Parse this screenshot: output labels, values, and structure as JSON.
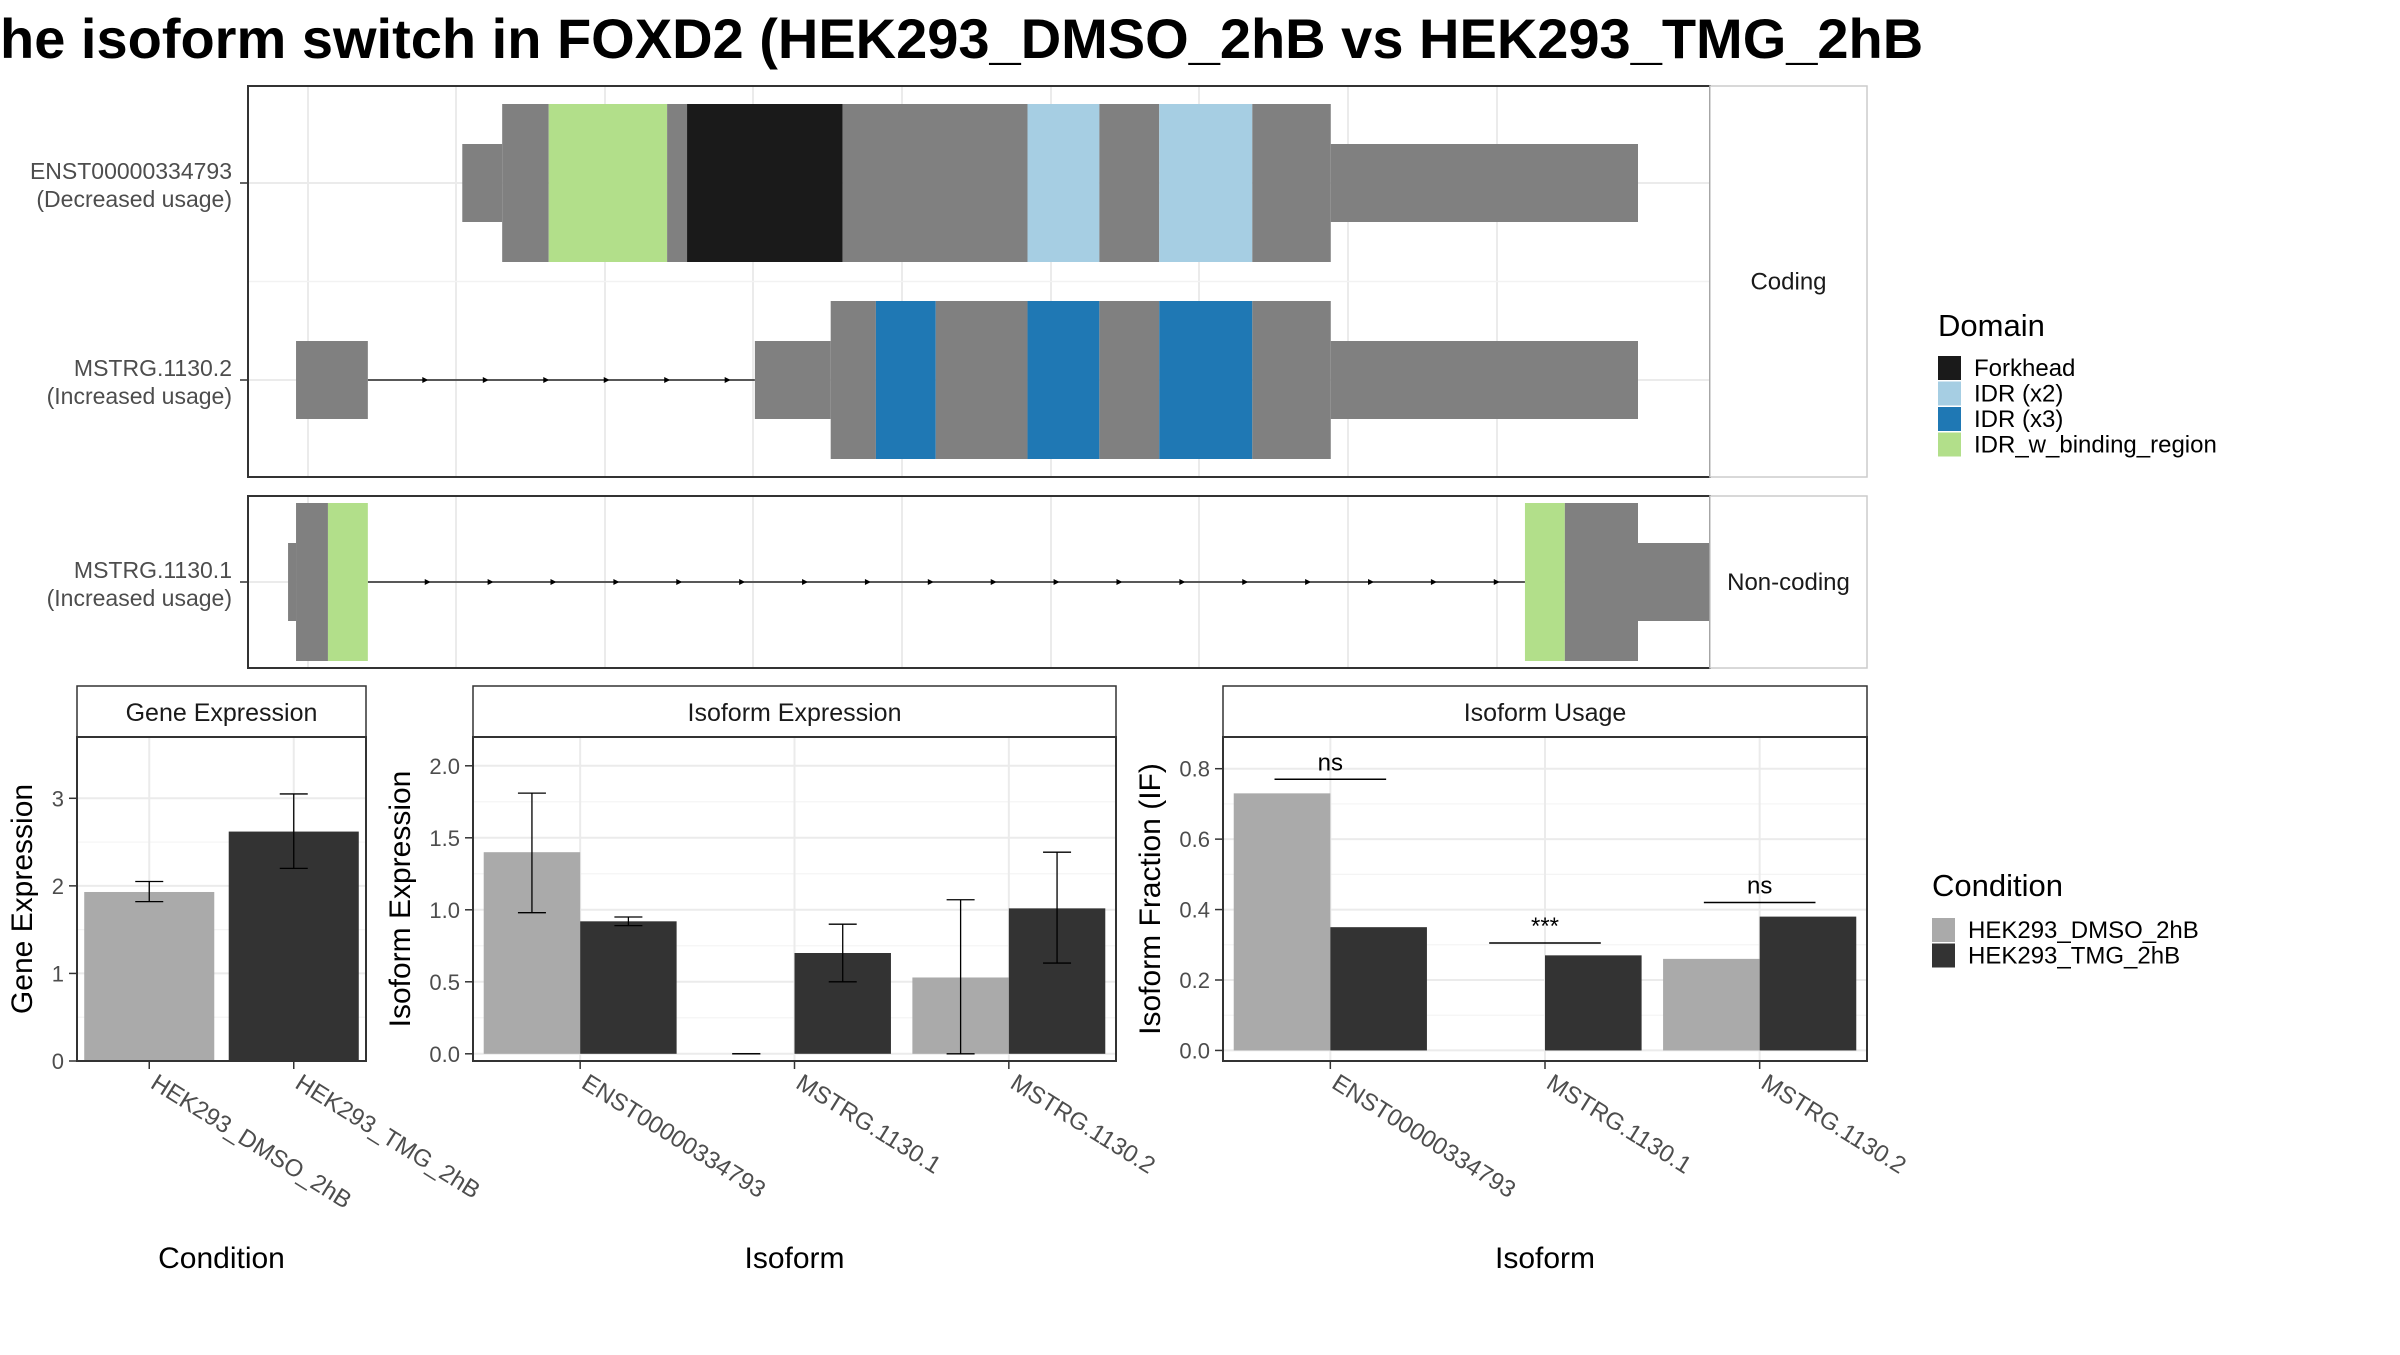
{
  "title": "he isoform switch in FOXD2 (HEK293_DMSO_2hB vs HEK293_TMG_2hB",
  "structure": {
    "panels": [
      {
        "strip": "Coding",
        "transcripts": [
          {
            "name": "ENST00000334793",
            "usage": "(Decreased usage)",
            "segments": [
              {
                "start": 0.116,
                "end": 0.146,
                "kind": "utr"
              },
              {
                "start": 0.146,
                "end": 0.181,
                "kind": "cds"
              },
              {
                "start": 0.181,
                "end": 0.27,
                "kind": "cds",
                "domain": "IDR_w_binding_region"
              },
              {
                "start": 0.27,
                "end": 0.285,
                "kind": "cds"
              },
              {
                "start": 0.285,
                "end": 0.402,
                "kind": "cds",
                "domain": "Forkhead"
              },
              {
                "start": 0.402,
                "end": 0.541,
                "kind": "cds"
              },
              {
                "start": 0.541,
                "end": 0.595,
                "kind": "cds",
                "domain": "IDR (x2)"
              },
              {
                "start": 0.595,
                "end": 0.64,
                "kind": "cds"
              },
              {
                "start": 0.64,
                "end": 0.71,
                "kind": "cds",
                "domain": "IDR (x2)"
              },
              {
                "start": 0.71,
                "end": 0.769,
                "kind": "cds"
              },
              {
                "start": 0.769,
                "end": 1.0,
                "kind": "utr"
              }
            ],
            "introns": []
          },
          {
            "name": "MSTRG.1130.2",
            "usage": "(Increased usage)",
            "segments": [
              {
                "start": -0.009,
                "end": 0.045,
                "kind": "utr"
              },
              {
                "start": 0.336,
                "end": 0.393,
                "kind": "utr"
              },
              {
                "start": 0.393,
                "end": 0.427,
                "kind": "cds"
              },
              {
                "start": 0.427,
                "end": 0.472,
                "kind": "cds",
                "domain": "IDR (x3)"
              },
              {
                "start": 0.472,
                "end": 0.541,
                "kind": "cds"
              },
              {
                "start": 0.541,
                "end": 0.595,
                "kind": "cds",
                "domain": "IDR (x3)"
              },
              {
                "start": 0.595,
                "end": 0.64,
                "kind": "cds"
              },
              {
                "start": 0.64,
                "end": 0.71,
                "kind": "cds",
                "domain": "IDR (x3)"
              },
              {
                "start": 0.71,
                "end": 0.769,
                "kind": "cds"
              },
              {
                "start": 0.769,
                "end": 1.0,
                "kind": "utr"
              }
            ],
            "introns": [
              {
                "start": 0.045,
                "end": 0.336
              }
            ]
          }
        ]
      },
      {
        "strip": "Non-coding",
        "transcripts": [
          {
            "name": "MSTRG.1130.1",
            "usage": "(Increased usage)",
            "segments": [
              {
                "start": -0.015,
                "end": -0.009,
                "kind": "utr"
              },
              {
                "start": -0.009,
                "end": 0.015,
                "kind": "cds"
              },
              {
                "start": 0.015,
                "end": 0.045,
                "kind": "cds",
                "domain": "IDR_w_binding_region"
              },
              {
                "start": 0.915,
                "end": 0.945,
                "kind": "cds",
                "domain": "IDR_w_binding_region"
              },
              {
                "start": 0.945,
                "end": 1.0,
                "kind": "cds"
              },
              {
                "start": 1.0,
                "end": 1.075,
                "kind": "utr"
              }
            ],
            "introns": [
              {
                "start": 0.045,
                "end": 0.915
              }
            ]
          }
        ]
      }
    ]
  },
  "legend_domain": {
    "title": "Domain",
    "items": [
      {
        "label": "Forkhead",
        "color": "#1a1a1a"
      },
      {
        "label": "IDR (x2)",
        "color": "#a6cee3"
      },
      {
        "label": "IDR (x3)",
        "color": "#1f78b4"
      },
      {
        "label": "IDR_w_binding_region",
        "color": "#b2df8a"
      }
    ]
  },
  "legend_condition": {
    "title": "Condition",
    "items": [
      {
        "label": "HEK293_DMSO_2hB",
        "color": "#aaaaaa"
      },
      {
        "label": "HEK293_TMG_2hB",
        "color": "#333333"
      }
    ]
  },
  "chart_data": [
    {
      "type": "bar",
      "title": "Gene Expression",
      "xlabel": "Condition",
      "ylabel": "Gene Expression",
      "ylim": [
        0,
        3.7
      ],
      "yticks": [
        0,
        1,
        2,
        3
      ],
      "yticklabels": [
        "0",
        "1",
        "2",
        "3"
      ],
      "categories": [
        "HEK293_DMSO_2hB",
        "HEK293_TMG_2hB"
      ],
      "series": [
        {
          "name": "HEK293_DMSO_2hB",
          "color": "#aaaaaa",
          "values": [
            1.93,
            null
          ],
          "err_low": [
            1.82,
            null
          ],
          "err_high": [
            2.05,
            null
          ]
        },
        {
          "name": "HEK293_TMG_2hB",
          "color": "#333333",
          "values": [
            null,
            2.62
          ],
          "err_low": [
            null,
            2.2
          ],
          "err_high": [
            null,
            3.05
          ]
        }
      ],
      "grid": true
    },
    {
      "type": "bar",
      "title": "Isoform Expression",
      "xlabel": "Isoform",
      "ylabel": "Isoform Expression",
      "ylim": [
        -0.05,
        2.2
      ],
      "yticks": [
        0,
        0.5,
        1,
        1.5,
        2
      ],
      "yticklabels": [
        "0.0",
        "0.5",
        "1.0",
        "1.5",
        "2.0"
      ],
      "categories": [
        "ENST00000334793",
        "MSTRG.1130.1",
        "MSTRG.1130.2"
      ],
      "series": [
        {
          "name": "HEK293_DMSO_2hB",
          "color": "#aaaaaa",
          "values": [
            1.4,
            0.0,
            0.53
          ],
          "err_low": [
            0.98,
            0.0,
            0.0
          ],
          "err_high": [
            1.81,
            0.0,
            1.07
          ]
        },
        {
          "name": "HEK293_TMG_2hB",
          "color": "#333333",
          "values": [
            0.92,
            0.7,
            1.01
          ],
          "err_low": [
            0.89,
            0.5,
            0.63
          ],
          "err_high": [
            0.95,
            0.9,
            1.4
          ]
        }
      ],
      "grid": true
    },
    {
      "type": "bar",
      "title": "Isoform Usage",
      "xlabel": "Isoform",
      "ylabel": "Isoform Fraction (IF)",
      "ylim": [
        -0.03,
        0.89
      ],
      "yticks": [
        0,
        0.2,
        0.4,
        0.6,
        0.8
      ],
      "yticklabels": [
        "0.0",
        "0.2",
        "0.4",
        "0.6",
        "0.8"
      ],
      "categories": [
        "ENST00000334793",
        "MSTRG.1130.1",
        "MSTRG.1130.2"
      ],
      "series": [
        {
          "name": "HEK293_DMSO_2hB",
          "color": "#aaaaaa",
          "values": [
            0.73,
            0.0,
            0.26
          ]
        },
        {
          "name": "HEK293_TMG_2hB",
          "color": "#333333",
          "values": [
            0.35,
            0.27,
            0.38
          ]
        }
      ],
      "significance": [
        {
          "label": "ns",
          "y": 0.77
        },
        {
          "label": "***",
          "y": 0.305
        },
        {
          "label": "ns",
          "y": 0.42
        }
      ],
      "grid": true
    }
  ]
}
